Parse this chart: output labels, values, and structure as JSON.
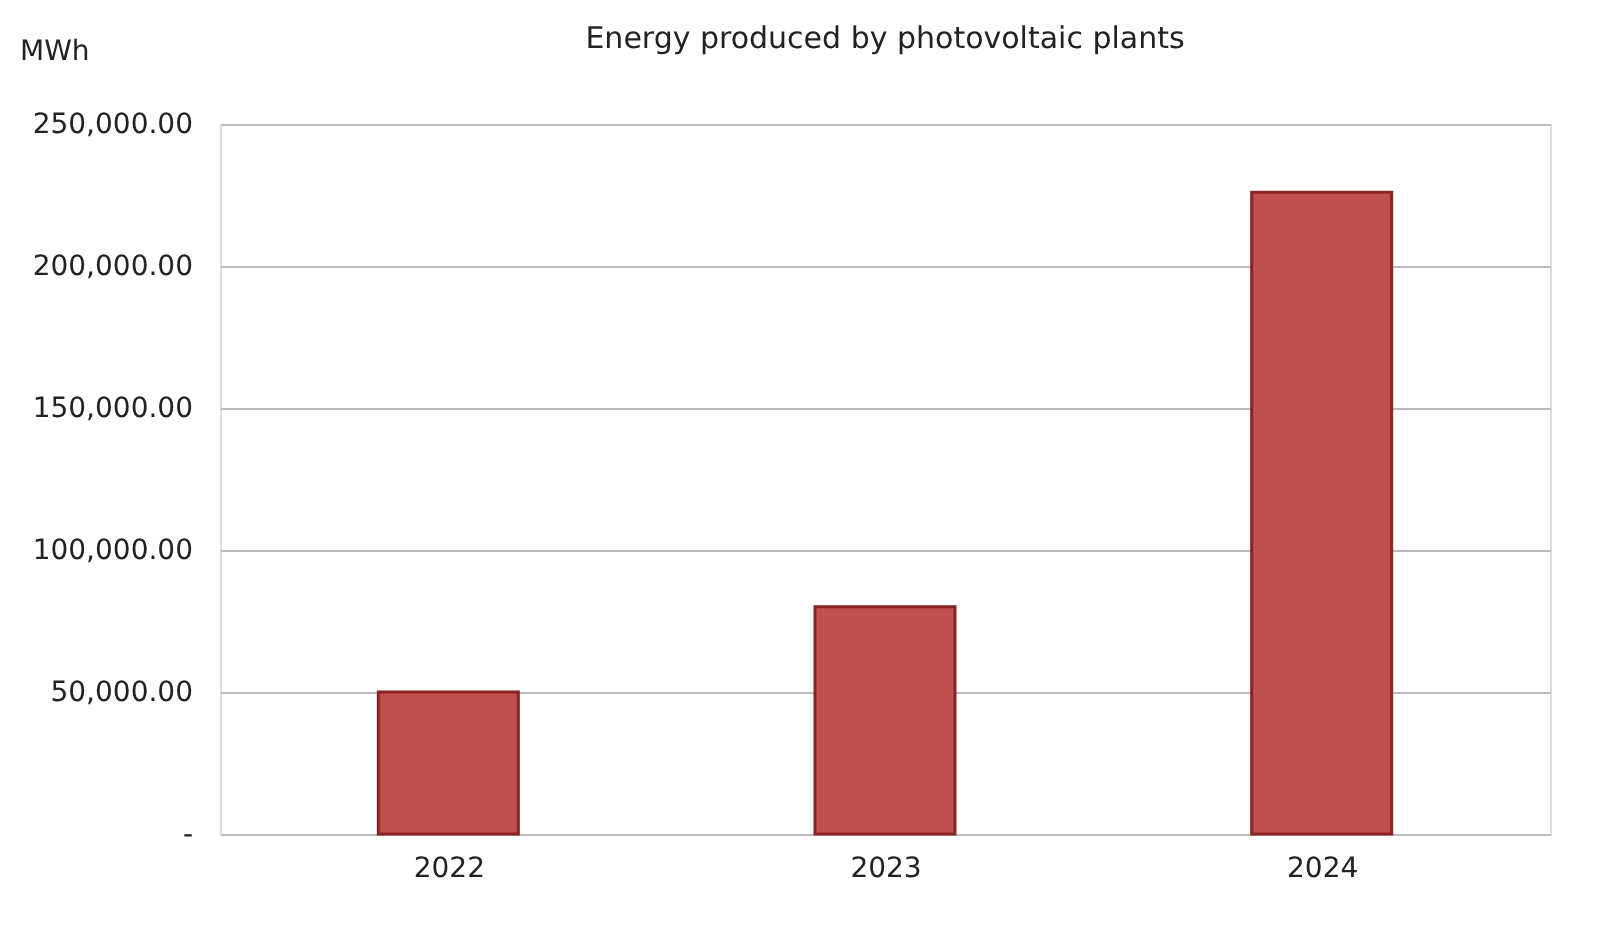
{
  "chart_data": {
    "type": "bar",
    "title": "Energy produced by photovoltaic plants",
    "ylabel": "MWh",
    "categories": [
      "2022",
      "2023",
      "2024"
    ],
    "series": [
      {
        "color": "#c0504d",
        "values": [
          50000,
          80000,
          226000
        ]
      }
    ],
    "ylim": [
      0,
      250000
    ],
    "yticks": [
      {
        "value": 0,
        "label": "-"
      },
      {
        "value": 50000,
        "label": "50,000.00"
      },
      {
        "value": 100000,
        "label": "100,000.00"
      },
      {
        "value": 150000,
        "label": "150,000.00"
      },
      {
        "value": 200000,
        "label": "200,000.00"
      },
      {
        "value": 250000,
        "label": "250,000.00"
      }
    ],
    "grid": "y"
  }
}
